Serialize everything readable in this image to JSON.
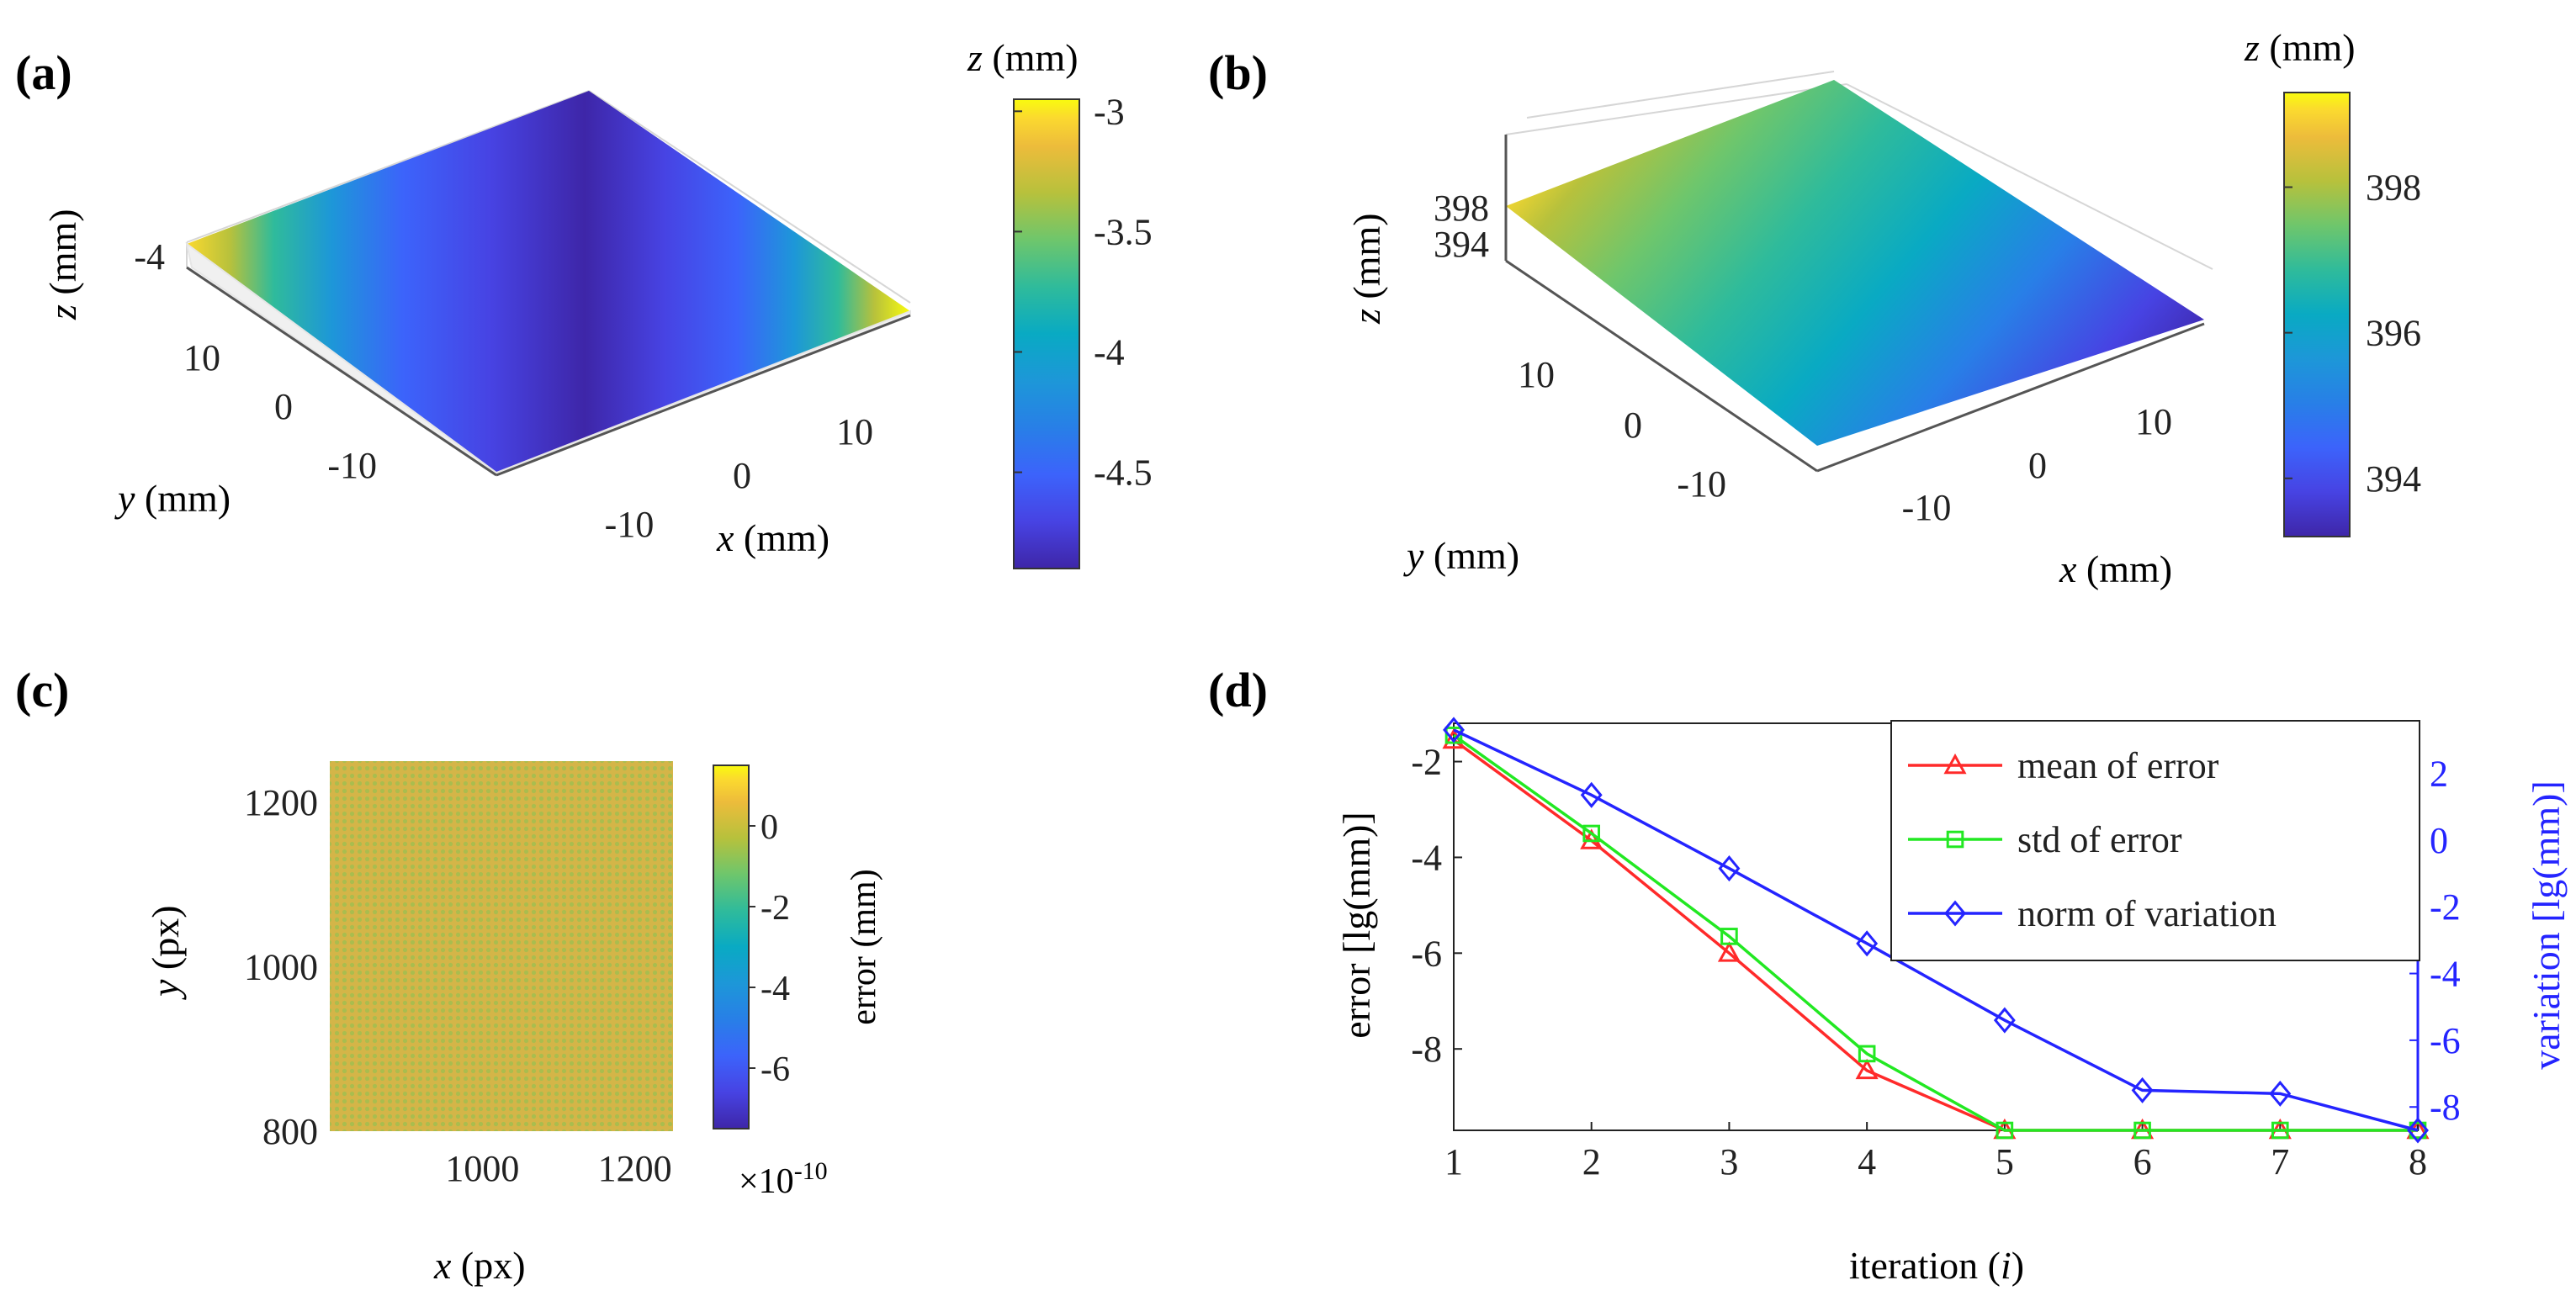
{
  "colors": {
    "parula": [
      "#3e26a8",
      "#4743e3",
      "#3c63fb",
      "#287fe7",
      "#1d97d8",
      "#09aac3",
      "#2fbb9b",
      "#6ec66c",
      "#b7c13c",
      "#edbc3b",
      "#fbd92f",
      "#f9fb0e"
    ],
    "error_line": "#ff2a2a",
    "std_line": "#22e822",
    "variation_line": "#2424ff",
    "variation_axis": "#2424ff"
  },
  "chart_data": [
    {
      "panel": "a",
      "panel_label": "(a)",
      "type": "surface3d",
      "title": "",
      "xlabel_var": "x",
      "xlabel_unit": " (mm)",
      "ylabel_var": "y",
      "ylabel_unit": " (mm)",
      "zlabel_var": "z",
      "zlabel_unit": " (mm)",
      "x_ticks": [
        "-10",
        "0",
        "10"
      ],
      "y_ticks": [
        "10",
        "0",
        "-10"
      ],
      "z_ticks": [
        "-4"
      ],
      "colorbar": {
        "label_var": "z",
        "label_unit": " (mm)",
        "ticks": [
          "-3",
          "-3.5",
          "-4",
          "-4.5"
        ],
        "range": [
          -4.9,
          -2.95
        ]
      }
    },
    {
      "panel": "b",
      "panel_label": "(b)",
      "type": "surface3d",
      "xlabel_var": "x",
      "xlabel_unit": " (mm)",
      "ylabel_var": "y",
      "ylabel_unit": " (mm)",
      "zlabel_var": "z",
      "zlabel_unit": " (mm)",
      "x_ticks": [
        "-10",
        "0",
        "10"
      ],
      "y_ticks": [
        "10",
        "0",
        "-10"
      ],
      "z_ticks": [
        "398",
        "394"
      ],
      "colorbar": {
        "label_var": "z",
        "label_unit": " (mm)",
        "ticks": [
          "398",
          "396",
          "394"
        ],
        "range": [
          393.2,
          399.3
        ]
      }
    },
    {
      "panel": "c",
      "panel_label": "(c)",
      "type": "heatmap",
      "xlabel_var": "x",
      "xlabel_unit": " (px)",
      "ylabel_var": "y",
      "ylabel_unit": " (px)",
      "x_ticks": [
        "1000",
        "1200"
      ],
      "y_ticks": [
        "1200",
        "1000",
        "800"
      ],
      "xlim": [
        800,
        1250
      ],
      "ylim": [
        800,
        1250
      ],
      "colorbar": {
        "label": "error (mm)",
        "ticks": [
          "0",
          "-2",
          "-4",
          "-6"
        ],
        "range": [
          -7.5,
          1.5
        ],
        "exponent_label": "×10",
        "exponent": "-10"
      }
    },
    {
      "panel": "d",
      "panel_label": "(d)",
      "type": "line",
      "xlabel_main": "iteration (",
      "xlabel_var": "i",
      "xlabel_close": ")",
      "ylabel": "error [lg(mm)]",
      "ylabel_right": "variation [lg(mm)]",
      "x": [
        1,
        2,
        3,
        4,
        5,
        6,
        7,
        8
      ],
      "xlim": [
        1,
        8
      ],
      "ylim_left": [
        -9.7,
        -1.2
      ],
      "ylim_right": [
        -8.7,
        3.5
      ],
      "left_ticks": [
        "-2",
        "-4",
        "-6",
        "-8"
      ],
      "right_ticks": [
        "2",
        "0",
        "-2",
        "-4",
        "-6",
        "-8"
      ],
      "series": [
        {
          "name": "mean of error",
          "axis": "left",
          "marker": "triangle",
          "values": [
            -1.55,
            -3.65,
            -6.0,
            -8.45,
            -9.7,
            -9.7,
            -9.7,
            -9.7
          ]
        },
        {
          "name": "std of error",
          "axis": "left",
          "marker": "square",
          "values": [
            -1.45,
            -3.5,
            -5.65,
            -8.1,
            -9.7,
            -9.7,
            -9.7,
            -9.7
          ]
        },
        {
          "name": "norm of variation",
          "axis": "right",
          "marker": "diamond",
          "values": [
            3.3,
            1.35,
            -0.85,
            -3.1,
            -5.4,
            -7.5,
            -7.6,
            -8.7
          ]
        }
      ]
    }
  ]
}
